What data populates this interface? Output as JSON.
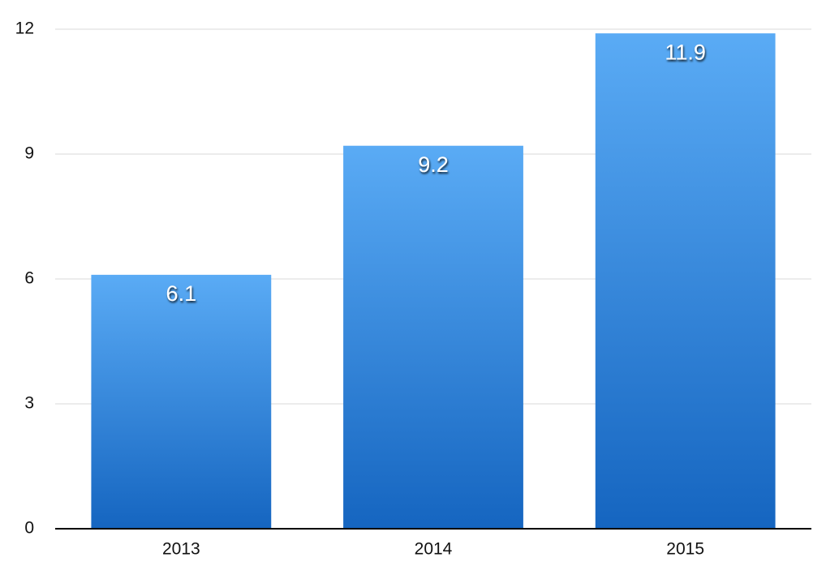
{
  "chart_data": {
    "type": "bar",
    "categories": [
      "2013",
      "2014",
      "2015"
    ],
    "values": [
      6.1,
      9.2,
      11.9
    ],
    "gradient": [
      "#5aabf5",
      "#1565c0"
    ],
    "ylim": [
      0,
      12
    ],
    "yticks": [
      0,
      3,
      6,
      9,
      12
    ],
    "grid": true
  }
}
